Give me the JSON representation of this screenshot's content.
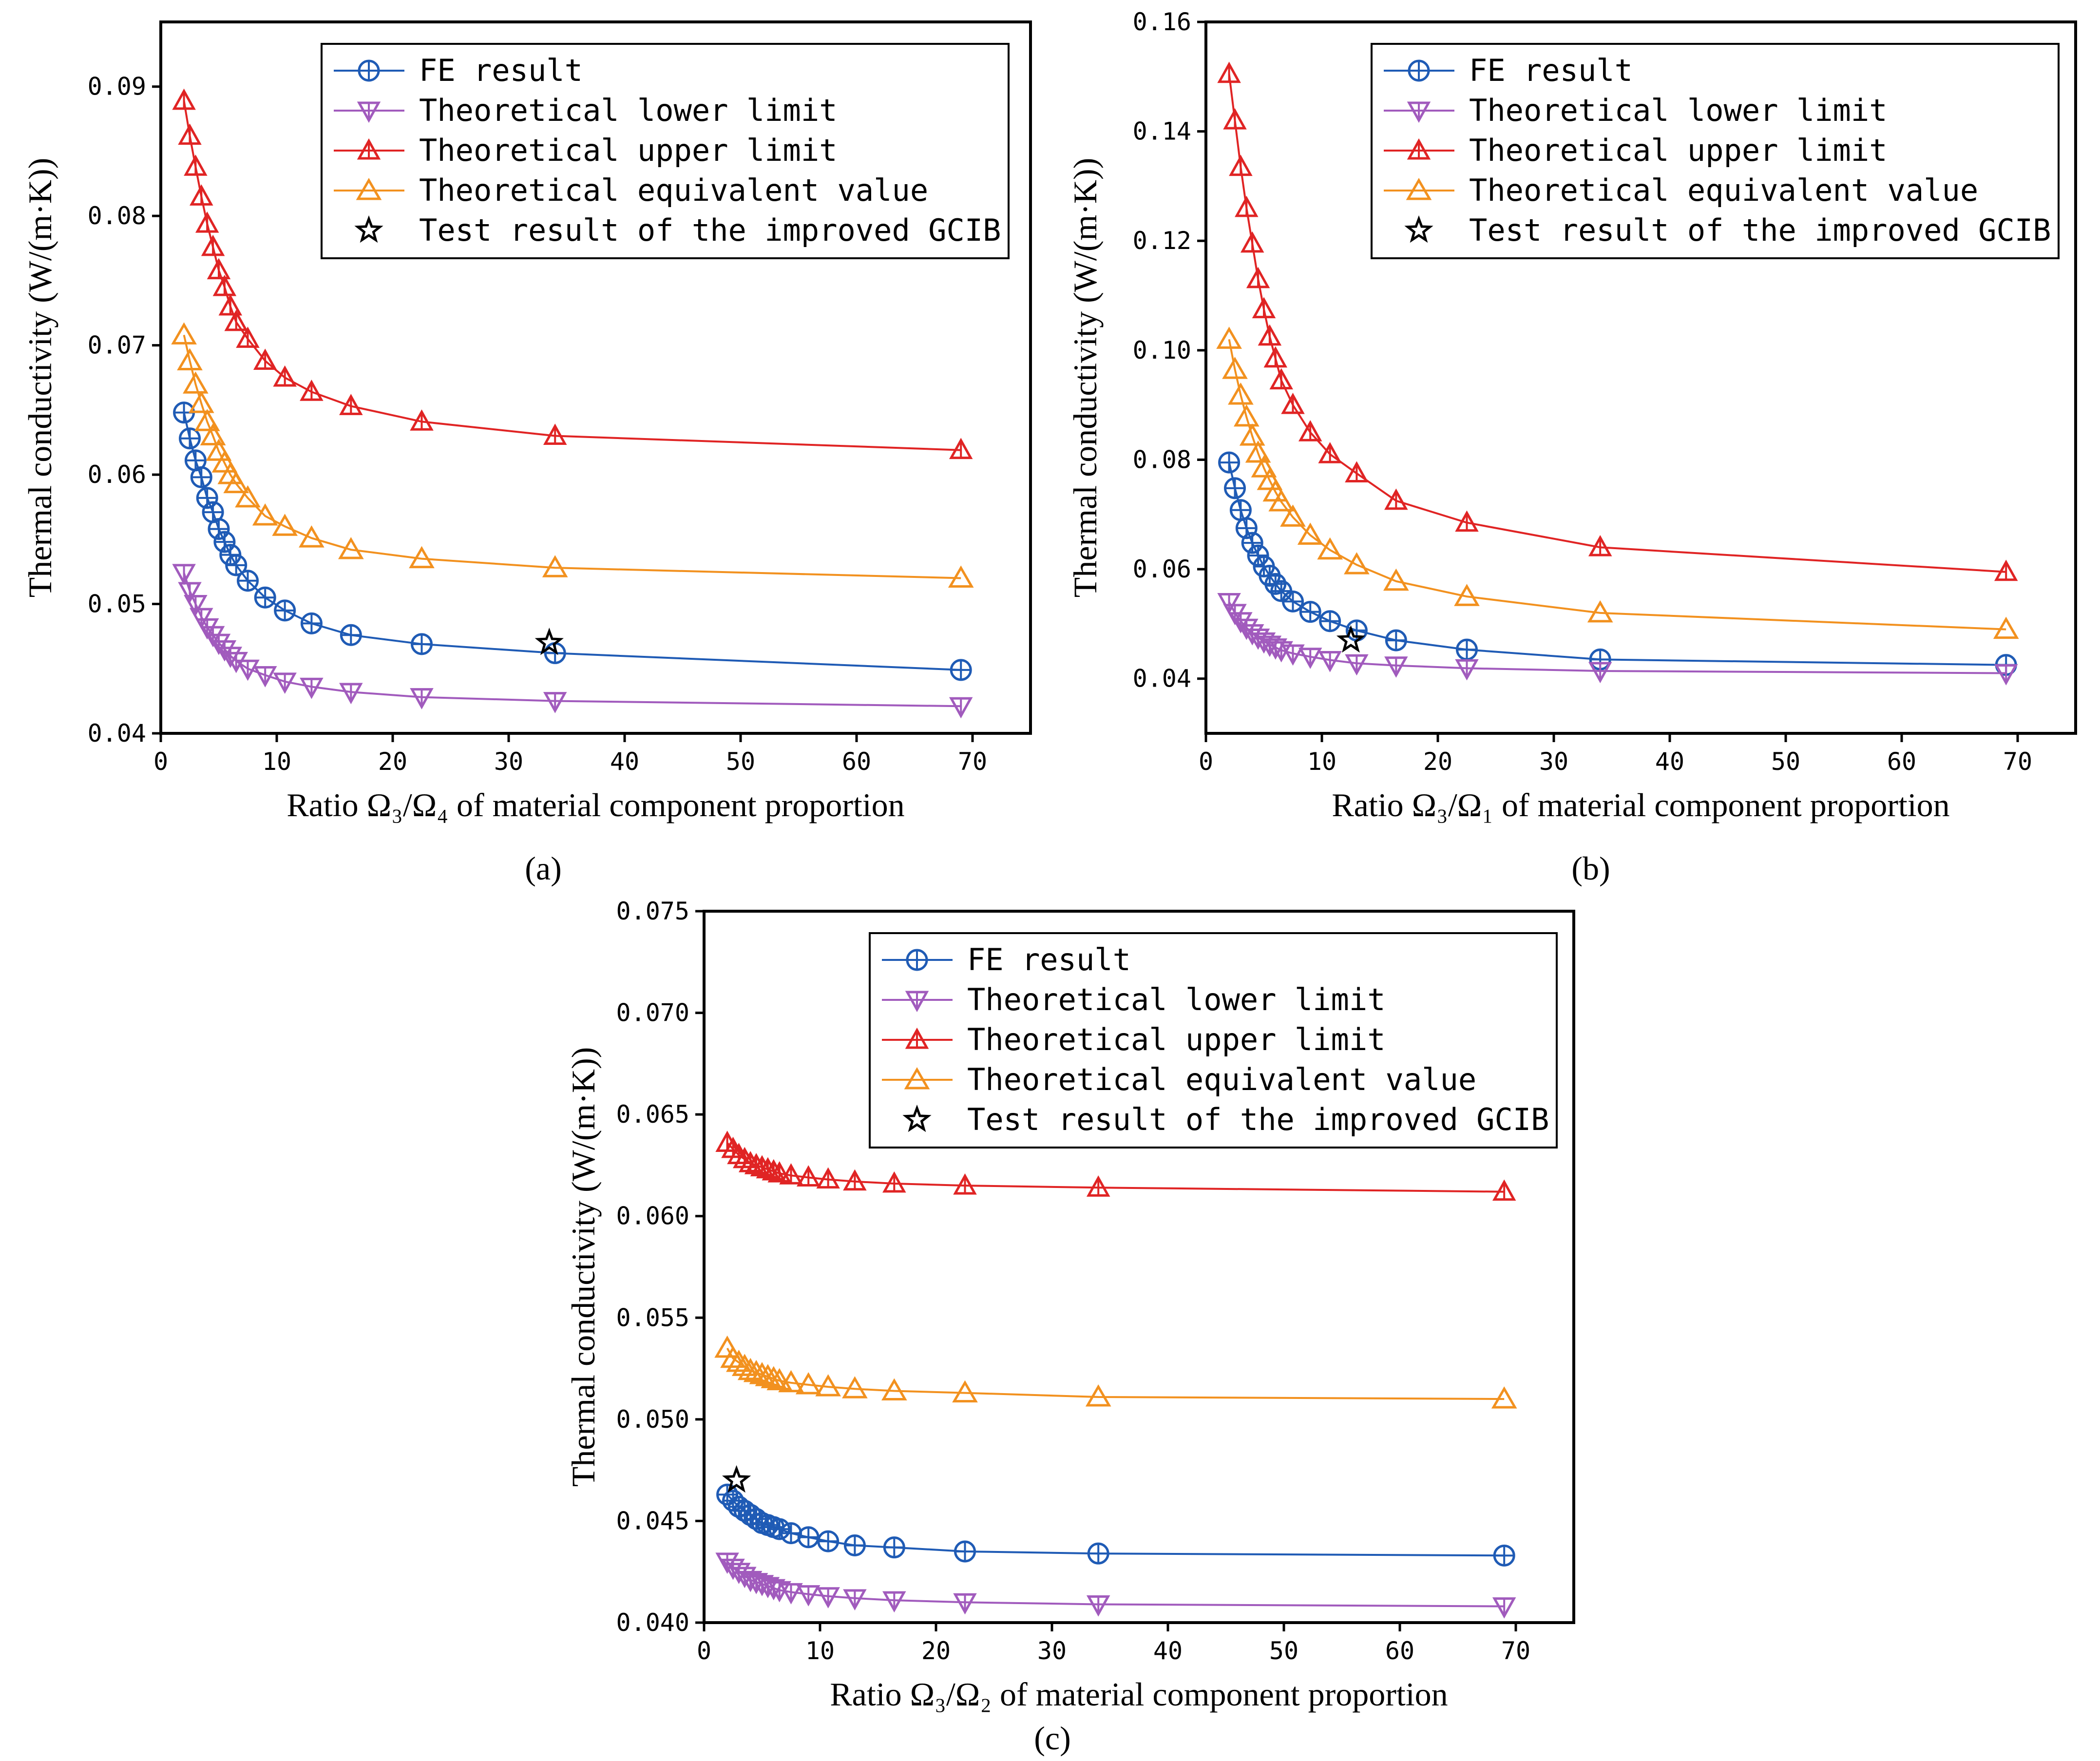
{
  "chart_data": [
    {
      "type": "line",
      "panel_label": "(a)",
      "xlabel": "Ratio Ω₃/Ω₄ of material component proportion",
      "ylabel": "Thermal conductivity (W/(m·K))",
      "xlim": [
        0,
        75
      ],
      "ylim": [
        0.04,
        0.095
      ],
      "xticks": [
        "0",
        "10",
        "20",
        "30",
        "40",
        "50",
        "60",
        "70"
      ],
      "yticks": [
        "0.04",
        "0.05",
        "0.06",
        "0.07",
        "0.08",
        "0.09"
      ],
      "legend_position": "top-right",
      "series": [
        {
          "name": "FE result",
          "color": "#1f5bb5",
          "marker": "circle-plus",
          "x": [
            2,
            2.5,
            3,
            3.5,
            4,
            4.5,
            5,
            5.5,
            6,
            6.5,
            7.5,
            9,
            10.7,
            13,
            16.4,
            22.5,
            34,
            69
          ],
          "y": [
            0.0648,
            0.0628,
            0.0611,
            0.0598,
            0.0582,
            0.0571,
            0.0558,
            0.0548,
            0.0538,
            0.053,
            0.0518,
            0.0505,
            0.0495,
            0.0485,
            0.0476,
            0.0469,
            0.0462,
            0.0449
          ]
        },
        {
          "name": "Theoretical lower limit",
          "color": "#a15bbd",
          "marker": "triangle-down",
          "x": [
            2,
            2.5,
            3,
            3.5,
            4,
            4.5,
            5,
            5.5,
            6,
            6.5,
            7.5,
            9,
            10.7,
            13,
            16.4,
            22.5,
            34,
            69
          ],
          "y": [
            0.0524,
            0.051,
            0.05,
            0.049,
            0.0482,
            0.0476,
            0.047,
            0.0465,
            0.046,
            0.0456,
            0.045,
            0.0445,
            0.044,
            0.0436,
            0.0432,
            0.0428,
            0.0425,
            0.0421
          ]
        },
        {
          "name": "Theoretical upper limit",
          "color": "#e02424",
          "marker": "triangle-up",
          "x": [
            2,
            2.5,
            3,
            3.5,
            4,
            4.5,
            5,
            5.5,
            6,
            6.5,
            7.5,
            9,
            10.7,
            13,
            16.4,
            22.5,
            34,
            69
          ],
          "y": [
            0.0889,
            0.0862,
            0.0838,
            0.0815,
            0.0794,
            0.0776,
            0.0758,
            0.0745,
            0.073,
            0.0718,
            0.0705,
            0.0688,
            0.0675,
            0.0664,
            0.0653,
            0.0641,
            0.063,
            0.0619
          ]
        },
        {
          "name": "Theoretical equivalent value",
          "color": "#f2911f",
          "marker": "triangle-up-open",
          "x": [
            2,
            2.5,
            3,
            3.5,
            4,
            4.5,
            5,
            5.5,
            6,
            6.5,
            7.5,
            9,
            10.7,
            13,
            16.4,
            22.5,
            34,
            69
          ],
          "y": [
            0.0708,
            0.0688,
            0.067,
            0.0655,
            0.0641,
            0.063,
            0.0618,
            0.0609,
            0.06,
            0.0593,
            0.0582,
            0.0568,
            0.056,
            0.0551,
            0.0542,
            0.0535,
            0.0528,
            0.052
          ]
        },
        {
          "name": "Test result of the improved GCIB",
          "color": "#000000",
          "marker": "star",
          "x": [
            33.5
          ],
          "y": [
            0.047
          ]
        }
      ]
    },
    {
      "type": "line",
      "panel_label": "(b)",
      "xlabel": "Ratio Ω₃/Ω₁ of material component proportion",
      "ylabel": "Thermal conductivity (W/(m·K))",
      "xlim": [
        0,
        75
      ],
      "ylim": [
        0.03,
        0.16
      ],
      "xticks": [
        "0",
        "10",
        "20",
        "30",
        "40",
        "50",
        "60",
        "70"
      ],
      "yticks": [
        "0.04",
        "0.06",
        "0.08",
        "0.10",
        "0.12",
        "0.14",
        "0.16"
      ],
      "legend_position": "top-right",
      "series": [
        {
          "name": "FE result",
          "color": "#1f5bb5",
          "marker": "circle-plus",
          "x": [
            2,
            2.5,
            3,
            3.5,
            4,
            4.5,
            5,
            5.5,
            6,
            6.5,
            7.5,
            9,
            10.7,
            13,
            16.4,
            22.5,
            34,
            69
          ],
          "y": [
            0.0795,
            0.0748,
            0.0708,
            0.0675,
            0.0648,
            0.0625,
            0.0605,
            0.0588,
            0.0573,
            0.056,
            0.0541,
            0.0522,
            0.0505,
            0.0488,
            0.047,
            0.0453,
            0.0435,
            0.0425
          ]
        },
        {
          "name": "Theoretical lower limit",
          "color": "#a15bbd",
          "marker": "triangle-down",
          "x": [
            2,
            2.5,
            3,
            3.5,
            4,
            4.5,
            5,
            5.5,
            6,
            6.5,
            7.5,
            9,
            10.7,
            13,
            16.4,
            22.5,
            34,
            69
          ],
          "y": [
            0.054,
            0.052,
            0.0505,
            0.0493,
            0.0483,
            0.0475,
            0.0468,
            0.0462,
            0.0457,
            0.0452,
            0.0446,
            0.044,
            0.0434,
            0.0428,
            0.0424,
            0.0419,
            0.0414,
            0.041
          ]
        },
        {
          "name": "Theoretical upper limit",
          "color": "#e02424",
          "marker": "triangle-up",
          "x": [
            2,
            2.5,
            3,
            3.5,
            4,
            4.5,
            5,
            5.5,
            6,
            6.5,
            7.5,
            9,
            10.7,
            13,
            16.4,
            22.5,
            34,
            69
          ],
          "y": [
            0.1505,
            0.142,
            0.1335,
            0.126,
            0.1195,
            0.113,
            0.1075,
            0.1025,
            0.0985,
            0.0945,
            0.09,
            0.085,
            0.081,
            0.0775,
            0.0725,
            0.0685,
            0.064,
            0.0595
          ]
        },
        {
          "name": "Theoretical equivalent value",
          "color": "#f2911f",
          "marker": "triangle-up-open",
          "x": [
            2,
            2.5,
            3,
            3.5,
            4,
            4.5,
            5,
            5.5,
            6,
            6.5,
            7.5,
            9,
            10.7,
            13,
            16.4,
            22.5,
            34,
            69
          ],
          "y": [
            0.102,
            0.0965,
            0.0918,
            0.0878,
            0.0843,
            0.0812,
            0.0785,
            0.0762,
            0.0741,
            0.0723,
            0.0695,
            0.0662,
            0.0635,
            0.0608,
            0.0578,
            0.055,
            0.052,
            0.049
          ]
        },
        {
          "name": "Test result of the improved GCIB",
          "color": "#000000",
          "marker": "star",
          "x": [
            12.5
          ],
          "y": [
            0.047
          ]
        }
      ]
    },
    {
      "type": "line",
      "panel_label": "(c)",
      "xlabel": "Ratio Ω₃/Ω₂ of material component proportion",
      "ylabel": "Thermal conductivity (W/(m·K))",
      "xlim": [
        0,
        75
      ],
      "ylim": [
        0.04,
        0.075
      ],
      "xticks": [
        "0",
        "10",
        "20",
        "30",
        "40",
        "50",
        "60",
        "70"
      ],
      "yticks": [
        "0.040",
        "0.045",
        "0.050",
        "0.055",
        "0.060",
        "0.065",
        "0.070",
        "0.075"
      ],
      "legend_position": "top-right",
      "series": [
        {
          "name": "FE result",
          "color": "#1f5bb5",
          "marker": "circle-plus",
          "x": [
            2,
            2.5,
            3,
            3.5,
            4,
            4.5,
            5,
            5.5,
            6,
            6.5,
            7.5,
            9,
            10.7,
            13,
            16.4,
            22.5,
            34,
            69
          ],
          "y": [
            0.0463,
            0.046,
            0.0457,
            0.0455,
            0.0453,
            0.0451,
            0.0449,
            0.0448,
            0.0447,
            0.0446,
            0.0444,
            0.0442,
            0.044,
            0.0438,
            0.0437,
            0.0435,
            0.0434,
            0.0433
          ]
        },
        {
          "name": "Theoretical lower limit",
          "color": "#a15bbd",
          "marker": "triangle-down",
          "x": [
            2,
            2.5,
            3,
            3.5,
            4,
            4.5,
            5,
            5.5,
            6,
            6.5,
            7.5,
            9,
            10.7,
            13,
            16.4,
            22.5,
            34,
            69
          ],
          "y": [
            0.043,
            0.0427,
            0.0425,
            0.0423,
            0.0421,
            0.042,
            0.0419,
            0.0418,
            0.0417,
            0.0416,
            0.0415,
            0.0414,
            0.0413,
            0.0412,
            0.0411,
            0.041,
            0.0409,
            0.0408
          ]
        },
        {
          "name": "Theoretical upper limit",
          "color": "#e02424",
          "marker": "triangle-up",
          "x": [
            2,
            2.5,
            3,
            3.5,
            4,
            4.5,
            5,
            5.5,
            6,
            6.5,
            7.5,
            9,
            10.7,
            13,
            16.4,
            22.5,
            34,
            69
          ],
          "y": [
            0.0636,
            0.0633,
            0.063,
            0.0628,
            0.0626,
            0.0625,
            0.0624,
            0.0623,
            0.0622,
            0.0621,
            0.062,
            0.0619,
            0.0618,
            0.0617,
            0.0616,
            0.0615,
            0.0614,
            0.0612
          ]
        },
        {
          "name": "Theoretical equivalent value",
          "color": "#f2911f",
          "marker": "triangle-up-open",
          "x": [
            2,
            2.5,
            3,
            3.5,
            4,
            4.5,
            5,
            5.5,
            6,
            6.5,
            7.5,
            9,
            10.7,
            13,
            16.4,
            22.5,
            34,
            69
          ],
          "y": [
            0.0535,
            0.053,
            0.0528,
            0.0526,
            0.0524,
            0.0523,
            0.0522,
            0.0521,
            0.052,
            0.0519,
            0.0518,
            0.0517,
            0.0516,
            0.0515,
            0.0514,
            0.0513,
            0.0511,
            0.051
          ]
        },
        {
          "name": "Test result of the improved GCIB",
          "color": "#000000",
          "marker": "star",
          "x": [
            2.8
          ],
          "y": [
            0.047
          ]
        }
      ]
    }
  ]
}
